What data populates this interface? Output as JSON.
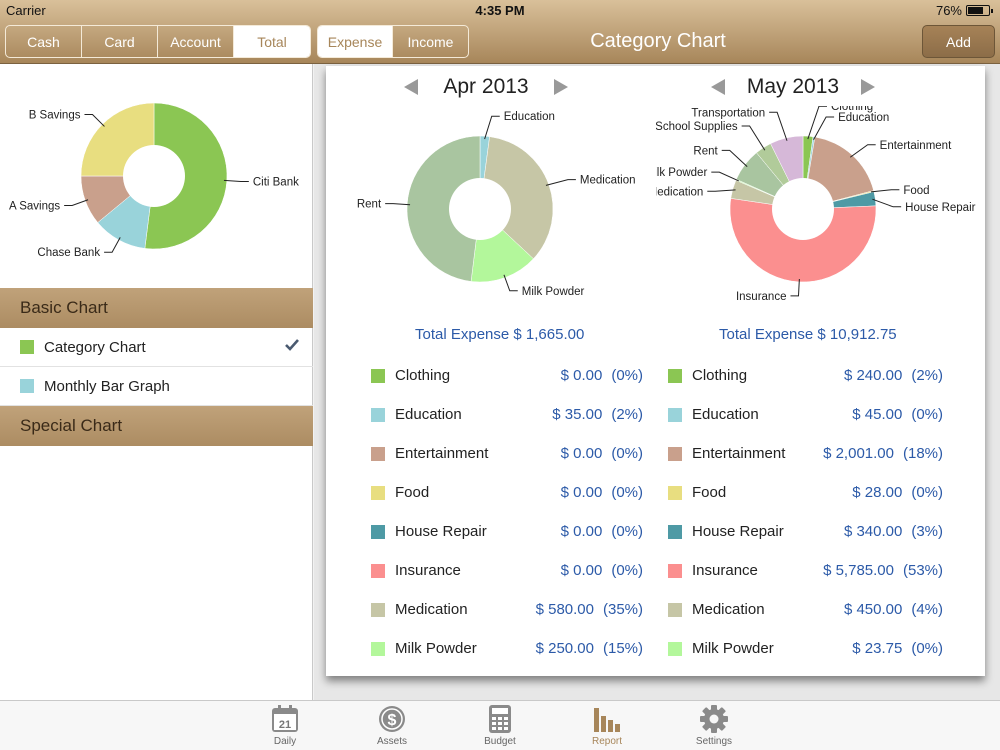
{
  "status": {
    "carrier": "Carrier",
    "time": "4:35 PM",
    "battery": "76%",
    "battery_level": 0.76
  },
  "header": {
    "account_tabs": [
      {
        "label": "Cash",
        "active": false
      },
      {
        "label": "Card",
        "active": false
      },
      {
        "label": "Account",
        "active": false
      },
      {
        "label": "Total",
        "active": true
      }
    ],
    "type_tabs": [
      {
        "label": "Expense",
        "active": true
      },
      {
        "label": "Income",
        "active": false
      }
    ],
    "title": "Category Chart",
    "add_label": "Add"
  },
  "sidebar": {
    "account_chart": {
      "slices": [
        {
          "label": "Citi Bank",
          "value": 52,
          "color": "#8bc653"
        },
        {
          "label": "Chase Bank",
          "value": 12,
          "color": "#99d3da"
        },
        {
          "label": "A Savings",
          "value": 11,
          "color": "#c9a08c"
        },
        {
          "label": "B Savings",
          "value": 25,
          "color": "#e8de80"
        }
      ]
    },
    "section_basic": "Basic Chart",
    "basic_items": [
      {
        "label": "Category Chart",
        "color": "#8bc653",
        "checked": true
      },
      {
        "label": "Monthly Bar Graph",
        "color": "#99d3da",
        "checked": false
      }
    ],
    "section_special": "Special Chart"
  },
  "chart_data": [
    {
      "type": "pie",
      "title": "Apr 2013",
      "total_label": "Total Expense $ 1,665.00",
      "slices": [
        {
          "label": "Education",
          "value": 35.0,
          "color": "#99d3da"
        },
        {
          "label": "Medication",
          "value": 580.0,
          "color": "#c6c6a6"
        },
        {
          "label": "Milk Powder",
          "value": 250.0,
          "color": "#b3f79b"
        },
        {
          "label": "Rent",
          "value": 800.0,
          "color": "#a9c5a0"
        }
      ],
      "legend": [
        {
          "name": "Clothing",
          "amount": "$ 0.00",
          "percent": "(0%)",
          "color": "#8bc653"
        },
        {
          "name": "Education",
          "amount": "$ 35.00",
          "percent": "(2%)",
          "color": "#99d3da"
        },
        {
          "name": "Entertainment",
          "amount": "$ 0.00",
          "percent": "(0%)",
          "color": "#c9a08c"
        },
        {
          "name": "Food",
          "amount": "$ 0.00",
          "percent": "(0%)",
          "color": "#e8de80"
        },
        {
          "name": "House Repair",
          "amount": "$ 0.00",
          "percent": "(0%)",
          "color": "#4e9aa5"
        },
        {
          "name": "Insurance",
          "amount": "$ 0.00",
          "percent": "(0%)",
          "color": "#fb8f8f"
        },
        {
          "name": "Medication",
          "amount": "$ 580.00",
          "percent": "(35%)",
          "color": "#c6c6a6"
        },
        {
          "name": "Milk Powder",
          "amount": "$ 250.00",
          "percent": "(15%)",
          "color": "#b3f79b"
        }
      ]
    },
    {
      "type": "pie",
      "title": "May 2013",
      "total_label": "Total Expense $ 10,912.75",
      "slices": [
        {
          "label": "Clothing",
          "value": 240.0,
          "color": "#8bc653"
        },
        {
          "label": "Education",
          "value": 45.0,
          "color": "#99d3da"
        },
        {
          "label": "Entertainment",
          "value": 2001.0,
          "color": "#c9a08c"
        },
        {
          "label": "Food",
          "value": 28.0,
          "color": "#e8de80"
        },
        {
          "label": "House Repair",
          "value": 340.0,
          "color": "#4e9aa5"
        },
        {
          "label": "Insurance",
          "value": 5785.0,
          "color": "#fb8f8f"
        },
        {
          "label": "Medication",
          "value": 450.0,
          "color": "#c6c6a6"
        },
        {
          "label": "Milk Powder",
          "value": 23.75,
          "color": "#b3f79b"
        },
        {
          "label": "Rent",
          "value": 800.0,
          "color": "#a9c5a0"
        },
        {
          "label": "School Supplies",
          "value": 400.0,
          "color": "#b1cb9a"
        },
        {
          "label": "Transportation",
          "value": 800.0,
          "color": "#d6b8d8"
        }
      ],
      "legend": [
        {
          "name": "Clothing",
          "amount": "$ 240.00",
          "percent": "(2%)",
          "color": "#8bc653"
        },
        {
          "name": "Education",
          "amount": "$ 45.00",
          "percent": "(0%)",
          "color": "#99d3da"
        },
        {
          "name": "Entertainment",
          "amount": "$ 2,001.00",
          "percent": "(18%)",
          "color": "#c9a08c"
        },
        {
          "name": "Food",
          "amount": "$ 28.00",
          "percent": "(0%)",
          "color": "#e8de80"
        },
        {
          "name": "House Repair",
          "amount": "$ 340.00",
          "percent": "(3%)",
          "color": "#4e9aa5"
        },
        {
          "name": "Insurance",
          "amount": "$ 5,785.00",
          "percent": "(53%)",
          "color": "#fb8f8f"
        },
        {
          "name": "Medication",
          "amount": "$ 450.00",
          "percent": "(4%)",
          "color": "#c6c6a6"
        },
        {
          "name": "Milk Powder",
          "amount": "$ 23.75",
          "percent": "(0%)",
          "color": "#b3f79b"
        }
      ]
    }
  ],
  "tabbar": {
    "tabs": [
      {
        "label": "Daily",
        "icon": "calendar-icon",
        "active": false
      },
      {
        "label": "Assets",
        "icon": "dollar-coin-icon",
        "active": false
      },
      {
        "label": "Budget",
        "icon": "calculator-icon",
        "active": false
      },
      {
        "label": "Report",
        "icon": "bar-chart-icon",
        "active": true
      },
      {
        "label": "Settings",
        "icon": "gear-icon",
        "active": false
      }
    ],
    "calendar_day": "21"
  }
}
